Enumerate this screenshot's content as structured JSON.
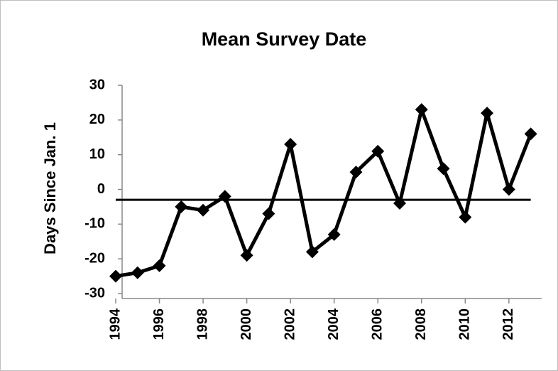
{
  "chart_data": {
    "type": "line",
    "title": "Mean Survey Date",
    "y_label": "Days Since Jan. 1",
    "x": [
      1994,
      1995,
      1996,
      1997,
      1998,
      1999,
      2000,
      2001,
      2002,
      2003,
      2004,
      2005,
      2006,
      2007,
      2008,
      2009,
      2010,
      2011,
      2012,
      2013
    ],
    "series": [
      {
        "color": "#000000",
        "marker": "diamond",
        "values": [
          -25,
          -24,
          -22,
          -5,
          -6,
          -2,
          -19,
          -7,
          13,
          -18,
          -13,
          5,
          11,
          -4,
          23,
          6,
          -8,
          22,
          0,
          16
        ]
      }
    ],
    "reference_value": -3,
    "xlim": [
      1994,
      2013.5
    ],
    "xticks": [
      1994,
      1996,
      1998,
      2000,
      2002,
      2004,
      2006,
      2008,
      2010,
      2012
    ],
    "ylim": [
      -30,
      30
    ],
    "yticks": [
      -30,
      -20,
      -10,
      0,
      10,
      20,
      30
    ],
    "grid": false
  }
}
